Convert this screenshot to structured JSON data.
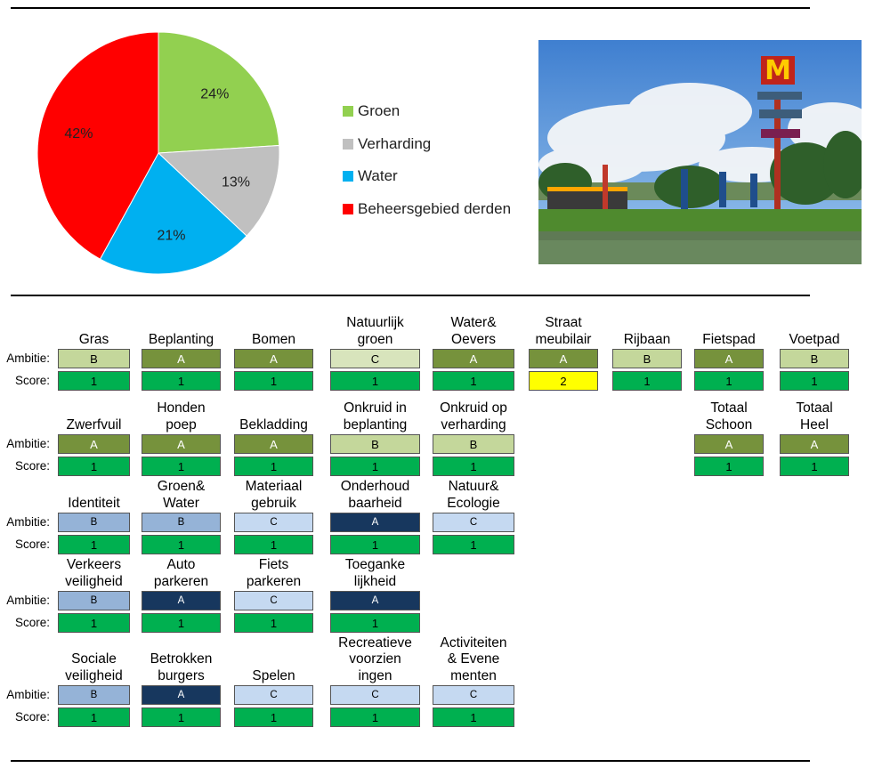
{
  "chart_data": {
    "type": "pie",
    "slices": [
      {
        "label": "Groen",
        "value": 24,
        "text": "24%",
        "color": "#92d050"
      },
      {
        "label": "Verharding",
        "value": 13,
        "text": "13%",
        "color": "#c0c0c0"
      },
      {
        "label": "Water",
        "value": 21,
        "text": "21%",
        "color": "#00b0f0"
      },
      {
        "label": "Beheersgebied derden",
        "value": 42,
        "text": "42%",
        "color": "#ff0000"
      }
    ],
    "legend_position": "right"
  },
  "labels": {
    "ambitie": "Ambitie:",
    "score": "Score:"
  },
  "colors": {
    "score_green": "#00b050",
    "score_yellow": "#ffff00",
    "olive_dark": "#76923c",
    "olive_light": "#c4d79b",
    "olive_pale": "#d8e4bc",
    "blue_mid": "#95b3d7",
    "blue_pale": "#c5d9f1",
    "blue_dark": "#17375e"
  },
  "sections": [
    {
      "items": [
        {
          "title": "Gras",
          "ambitie": "B",
          "score": "1",
          "acolor": "olive_light",
          "scolor": "score_green"
        },
        {
          "title": "Beplanting",
          "ambitie": "A",
          "score": "1",
          "acolor": "olive_dark",
          "scolor": "score_green"
        },
        {
          "title": "Bomen",
          "ambitie": "A",
          "score": "1",
          "acolor": "olive_dark",
          "scolor": "score_green"
        },
        {
          "title": "Natuurlijk\ngroen",
          "ambitie": "C",
          "score": "1",
          "acolor": "olive_pale",
          "scolor": "score_green"
        },
        {
          "title": "Water&\nOevers",
          "ambitie": "A",
          "score": "1",
          "acolor": "olive_dark",
          "scolor": "score_green"
        },
        {
          "title": "Straat\nmeubilair",
          "ambitie": "A",
          "score": "2",
          "acolor": "olive_dark",
          "scolor": "score_yellow"
        },
        {
          "title": "Rijbaan",
          "ambitie": "B",
          "score": "1",
          "acolor": "olive_light",
          "scolor": "score_green"
        },
        {
          "title": "Fietspad",
          "ambitie": "A",
          "score": "1",
          "acolor": "olive_dark",
          "scolor": "score_green"
        },
        {
          "title": "Voetpad",
          "ambitie": "B",
          "score": "1",
          "acolor": "olive_light",
          "scolor": "score_green"
        }
      ]
    },
    {
      "items": [
        {
          "title": "Zwerfvuil",
          "ambitie": "A",
          "score": "1",
          "acolor": "olive_dark",
          "scolor": "score_green"
        },
        {
          "title": "Honden\npoep",
          "ambitie": "A",
          "score": "1",
          "acolor": "olive_dark",
          "scolor": "score_green"
        },
        {
          "title": "Bekladding",
          "ambitie": "A",
          "score": "1",
          "acolor": "olive_dark",
          "scolor": "score_green"
        },
        {
          "title": "Onkruid in\nbeplanting",
          "ambitie": "B",
          "score": "1",
          "acolor": "olive_light",
          "scolor": "score_green"
        },
        {
          "title": "Onkruid op\nverharding",
          "ambitie": "B",
          "score": "1",
          "acolor": "olive_light",
          "scolor": "score_green"
        },
        {
          "title": "Totaal\nSchoon",
          "ambitie": "A",
          "score": "1",
          "acolor": "olive_dark",
          "scolor": "score_green"
        },
        {
          "title": "Totaal\nHeel",
          "ambitie": "A",
          "score": "1",
          "acolor": "olive_dark",
          "scolor": "score_green"
        }
      ]
    },
    {
      "items": [
        {
          "title": "Identiteit",
          "ambitie": "B",
          "score": "1",
          "acolor": "blue_mid",
          "scolor": "score_green"
        },
        {
          "title": "Groen&\nWater",
          "ambitie": "B",
          "score": "1",
          "acolor": "blue_mid",
          "scolor": "score_green"
        },
        {
          "title": "Materiaal\ngebruik",
          "ambitie": "C",
          "score": "1",
          "acolor": "blue_pale",
          "scolor": "score_green"
        },
        {
          "title": "Onderhoud\nbaarheid",
          "ambitie": "A",
          "score": "1",
          "acolor": "blue_dark",
          "scolor": "score_green"
        },
        {
          "title": "Natuur&\nEcologie",
          "ambitie": "C",
          "score": "1",
          "acolor": "blue_pale",
          "scolor": "score_green"
        }
      ]
    },
    {
      "items": [
        {
          "title": "Verkeers\nveiligheid",
          "ambitie": "B",
          "score": "1",
          "acolor": "blue_mid",
          "scolor": "score_green"
        },
        {
          "title": "Auto\nparkeren",
          "ambitie": "A",
          "score": "1",
          "acolor": "blue_dark",
          "scolor": "score_green"
        },
        {
          "title": "Fiets\nparkeren",
          "ambitie": "C",
          "score": "1",
          "acolor": "blue_pale",
          "scolor": "score_green"
        },
        {
          "title": "Toeganke\nlijkheid",
          "ambitie": "A",
          "score": "1",
          "acolor": "blue_dark",
          "scolor": "score_green"
        }
      ]
    },
    {
      "items": [
        {
          "title": "Sociale\nveiligheid",
          "ambitie": "B",
          "score": "1",
          "acolor": "blue_mid",
          "scolor": "score_green"
        },
        {
          "title": "Betrokken\nburgers",
          "ambitie": "A",
          "score": "1",
          "acolor": "blue_dark",
          "scolor": "score_green"
        },
        {
          "title": "Spelen",
          "ambitie": "C",
          "score": "1",
          "acolor": "blue_pale",
          "scolor": "score_green"
        },
        {
          "title": "Recreatieve\nvoorzien\ningen",
          "ambitie": "C",
          "score": "1",
          "acolor": "blue_pale",
          "scolor": "score_green"
        },
        {
          "title": "Activiteiten\n& Evene\nmenten",
          "ambitie": "C",
          "score": "1",
          "acolor": "blue_pale",
          "scolor": "score_green"
        }
      ]
    }
  ]
}
